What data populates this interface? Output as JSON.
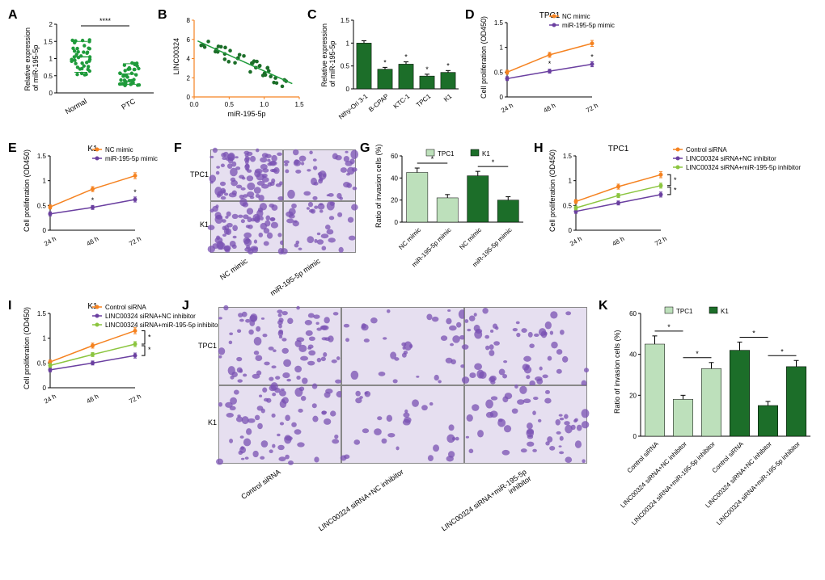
{
  "colors": {
    "green": "#1f9b3b",
    "dark_green": "#1c6e29",
    "light_green": "#bde0bb",
    "orange": "#f58220",
    "purple": "#6a3fa0",
    "lime": "#8bc53f",
    "axis": "#000000",
    "bg": "#ffffff",
    "micro_purple": "#7a52b3",
    "micro_bg": "#e6dff0"
  },
  "A": {
    "label": "A",
    "y_title": "Relative expression\nof miR-195-5p",
    "groups": [
      "Normal",
      "PTC"
    ],
    "sig": "****",
    "ylim": [
      0,
      2.0
    ],
    "yticks": [
      0,
      0.5,
      1.0,
      1.5,
      2.0
    ],
    "means": [
      1.05,
      0.55
    ],
    "sd": [
      0.45,
      0.3
    ],
    "n": 40,
    "color": "#1f9b3b"
  },
  "B": {
    "label": "B",
    "y_title": "LINC00324",
    "x_title": "miR-195-5p",
    "xlim": [
      0,
      1.5
    ],
    "ylim": [
      0,
      8
    ],
    "yticks": [
      0,
      2,
      4,
      6,
      8
    ],
    "xticks": [
      0.0,
      0.5,
      1.0,
      1.5
    ],
    "n": 40,
    "color": "#1c6e29",
    "line_color": "#1f9b3b",
    "axis_color": "#f58220"
  },
  "C": {
    "label": "C",
    "y_title": "Relative expression\nof miR-195-5p",
    "categories": [
      "Nthy-Ori 3-1",
      "B-CPAP",
      "KTC-1",
      "TPC1",
      "K1"
    ],
    "values": [
      1.0,
      0.43,
      0.54,
      0.28,
      0.36
    ],
    "errors": [
      0.05,
      0.04,
      0.05,
      0.04,
      0.04
    ],
    "sig": [
      "",
      "*",
      "*",
      "*",
      "*"
    ],
    "ylim": [
      0,
      1.5
    ],
    "yticks": [
      0,
      0.5,
      1.0,
      1.5
    ],
    "bar_color": "#1c6e29"
  },
  "D": {
    "label": "D",
    "title": "TPC1",
    "y_title": "Cell proliferation (OD450)",
    "x": [
      "24 h",
      "48 h",
      "72 h"
    ],
    "series": [
      {
        "name": "NC mimic",
        "color": "#f58220",
        "y": [
          0.5,
          0.85,
          1.08
        ],
        "err": [
          0.04,
          0.05,
          0.06
        ]
      },
      {
        "name": "miR-195-5p mimic",
        "color": "#6a3fa0",
        "y": [
          0.37,
          0.52,
          0.66
        ],
        "err": [
          0.04,
          0.04,
          0.05
        ]
      }
    ],
    "ylim": [
      0,
      1.5
    ],
    "yticks": [
      0,
      0.5,
      1.0,
      1.5
    ],
    "sig": [
      "",
      "*",
      "*"
    ]
  },
  "E": {
    "label": "E",
    "title": "K1",
    "y_title": "Cell proliferation (OD450)",
    "x": [
      "24 h",
      "48 h",
      "72 h"
    ],
    "series": [
      {
        "name": "NC mimic",
        "color": "#f58220",
        "y": [
          0.47,
          0.83,
          1.1
        ],
        "err": [
          0.04,
          0.05,
          0.06
        ]
      },
      {
        "name": "miR-195-5p mimic",
        "color": "#6a3fa0",
        "y": [
          0.33,
          0.46,
          0.62
        ],
        "err": [
          0.04,
          0.04,
          0.05
        ]
      }
    ],
    "ylim": [
      0,
      1.5
    ],
    "yticks": [
      0,
      0.5,
      1.0,
      1.5
    ],
    "sig": [
      "",
      "*",
      "*"
    ]
  },
  "F": {
    "label": "F",
    "rows": [
      "TPC1",
      "K1"
    ],
    "cols": [
      "NC mimic",
      "miR-195-5p mimic"
    ],
    "density": [
      [
        0.7,
        0.35
      ],
      [
        0.6,
        0.3
      ]
    ]
  },
  "G": {
    "label": "G",
    "y_title": "Ratio of invasion cells (%)",
    "groups": [
      "TPC1",
      "K1"
    ],
    "group_colors": [
      "#bde0bb",
      "#1c6e29"
    ],
    "categories": [
      "NC mimic",
      "miR-195-5p mimic",
      "NC mimic",
      "miR-195-5p mimic"
    ],
    "values": [
      45,
      22,
      42,
      20
    ],
    "errors": [
      4,
      3,
      4,
      3
    ],
    "sig_bars": [
      [
        0,
        1,
        "*"
      ],
      [
        2,
        3,
        "*"
      ]
    ],
    "ylim": [
      0,
      60
    ],
    "yticks": [
      0,
      20,
      40,
      60
    ]
  },
  "H": {
    "label": "H",
    "title": "TPC1",
    "y_title": "Cell proliferation (OD450)",
    "x": [
      "24 h",
      "48 h",
      "72 h"
    ],
    "series": [
      {
        "name": "Control siRNA",
        "color": "#f58220",
        "y": [
          0.58,
          0.88,
          1.12
        ],
        "err": [
          0.04,
          0.05,
          0.06
        ]
      },
      {
        "name": "LINC00324 siRNA+NC inhibitor",
        "color": "#6a3fa0",
        "y": [
          0.38,
          0.55,
          0.72
        ],
        "err": [
          0.04,
          0.04,
          0.05
        ]
      },
      {
        "name": "LINC00324 siRNA+miR-195-5p inhibitor",
        "color": "#8bc53f",
        "y": [
          0.45,
          0.7,
          0.9
        ],
        "err": [
          0.04,
          0.04,
          0.05
        ]
      }
    ],
    "ylim": [
      0,
      1.5
    ],
    "yticks": [
      0,
      0.5,
      1.0,
      1.5
    ],
    "bracket": "]*"
  },
  "I": {
    "label": "I",
    "title": "K1",
    "y_title": "Cell proliferation (OD450)",
    "x": [
      "24 h",
      "48 h",
      "72 h"
    ],
    "series": [
      {
        "name": "Control siRNA",
        "color": "#f58220",
        "y": [
          0.52,
          0.85,
          1.15
        ],
        "err": [
          0.04,
          0.05,
          0.06
        ]
      },
      {
        "name": "LINC00324 siRNA+NC inhibitor",
        "color": "#6a3fa0",
        "y": [
          0.36,
          0.5,
          0.65
        ],
        "err": [
          0.04,
          0.04,
          0.05
        ]
      },
      {
        "name": "LINC00324 siRNA+miR-195-5p inhibitor",
        "color": "#8bc53f",
        "y": [
          0.45,
          0.67,
          0.88
        ],
        "err": [
          0.04,
          0.04,
          0.05
        ]
      }
    ],
    "ylim": [
      0,
      1.5
    ],
    "yticks": [
      0,
      0.5,
      1.0,
      1.5
    ],
    "bracket": "]*"
  },
  "J": {
    "label": "J",
    "rows": [
      "TPC1",
      "K1"
    ],
    "cols": [
      "Control siRNA",
      "LINC00324 siRNA+NC inhibitor",
      "LINC00324 siRNA+miR-195-5p inhibitor"
    ],
    "density": [
      [
        0.7,
        0.3,
        0.5
      ],
      [
        0.6,
        0.25,
        0.45
      ]
    ]
  },
  "K": {
    "label": "K",
    "y_title": "Ratio of invasion cells (%)",
    "groups": [
      "TPC1",
      "K1"
    ],
    "group_colors": [
      "#bde0bb",
      "#1c6e29"
    ],
    "categories": [
      "Control siRNA",
      "LINC00324 siRNA+NC inhibitor",
      "LINC00324 siRNA+miR-195-5p inhibitor",
      "Control siRNA",
      "LINC00324 siRNA+NC inhibitor",
      "LINC00324 siRNA+miR-195-5p inhibitor"
    ],
    "values": [
      45,
      18,
      33,
      42,
      15,
      34
    ],
    "errors": [
      4,
      2,
      3,
      4,
      2,
      3
    ],
    "sig_bars": [
      [
        0,
        1,
        "*"
      ],
      [
        1,
        2,
        "*"
      ],
      [
        3,
        4,
        "*"
      ],
      [
        4,
        5,
        "*"
      ]
    ],
    "ylim": [
      0,
      60
    ],
    "yticks": [
      0,
      20,
      40,
      60
    ]
  }
}
